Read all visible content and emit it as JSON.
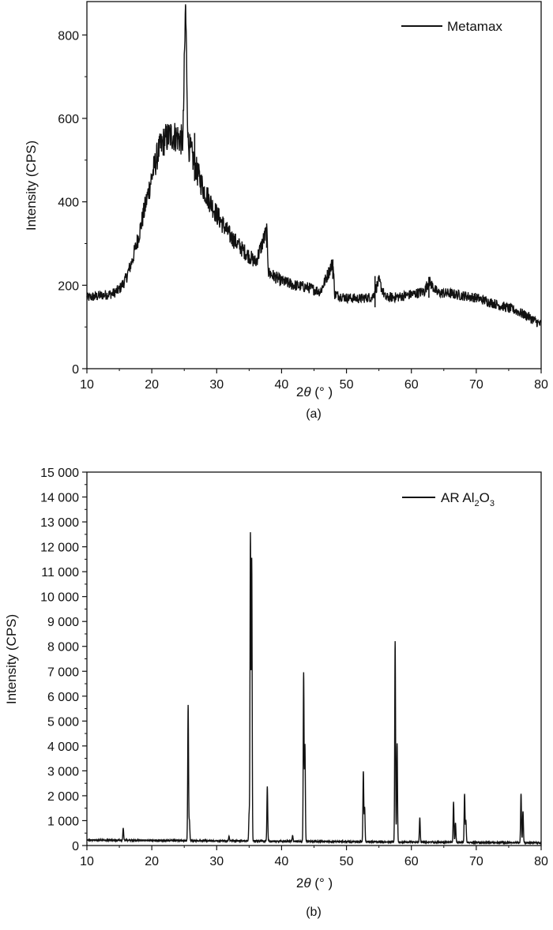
{
  "chart_data": [
    {
      "type": "line",
      "panel_label": "(a)",
      "xlabel_pre": "2",
      "xlabel_theta": "θ",
      "xlabel_post": " (° )",
      "ylabel": "Intensity (CPS)",
      "xlim": [
        10,
        80
      ],
      "ylim": [
        0,
        880
      ],
      "xticks": [
        10,
        20,
        30,
        40,
        50,
        60,
        70,
        80
      ],
      "yticks": [
        0,
        200,
        400,
        600,
        800
      ],
      "ytick_labels": [
        "0",
        "200",
        "400",
        "600",
        "800"
      ],
      "legend": "top-right",
      "grid": false,
      "series": [
        {
          "name": "Metamax",
          "color": "#111111",
          "x": [
            10,
            12,
            14,
            15,
            16,
            17,
            18,
            19,
            20,
            21,
            22,
            23,
            24,
            24.8,
            25.2,
            25.6,
            26,
            27,
            28,
            29,
            30,
            32,
            34,
            36,
            37.7,
            38,
            40,
            42,
            44,
            46,
            47.9,
            48.2,
            50,
            52,
            54,
            55,
            56,
            58,
            60,
            62,
            62.7,
            64,
            66,
            68,
            70,
            72,
            74,
            76,
            78,
            80
          ],
          "y": [
            170,
            175,
            180,
            190,
            215,
            260,
            320,
            390,
            460,
            520,
            550,
            560,
            555,
            545,
            870,
            540,
            520,
            470,
            430,
            400,
            370,
            320,
            285,
            255,
            330,
            230,
            210,
            200,
            195,
            185,
            255,
            178,
            170,
            168,
            172,
            210,
            170,
            172,
            178,
            185,
            210,
            182,
            180,
            175,
            170,
            160,
            150,
            140,
            125,
            105
          ]
        }
      ]
    },
    {
      "type": "line",
      "panel_label": "(b)",
      "xlabel_pre": "2",
      "xlabel_theta": "θ",
      "xlabel_post": " (° )",
      "ylabel": "Intensity (CPS)",
      "xlim": [
        10,
        80
      ],
      "ylim": [
        0,
        15000
      ],
      "xticks": [
        10,
        20,
        30,
        40,
        50,
        60,
        70,
        80
      ],
      "yticks": [
        0,
        1000,
        2000,
        3000,
        4000,
        5000,
        6000,
        7000,
        8000,
        9000,
        10000,
        11000,
        12000,
        13000,
        14000,
        15000
      ],
      "ytick_labels": [
        "0",
        "1 000",
        "2 000",
        "3 000",
        "4 000",
        "5 000",
        "6 000",
        "7 000",
        "8 000",
        "9 000",
        "10 000",
        "11 000",
        "12 000",
        "13 000",
        "14 000",
        "15 000"
      ],
      "legend": "top-right",
      "grid": false,
      "series": [
        {
          "name_main": "AR Al",
          "name_sub1": "2",
          "name_mid": "O",
          "name_sub2": "3",
          "color": "#111111",
          "baseline": 220,
          "peaks": [
            {
              "x": 15.6,
              "y": 700
            },
            {
              "x": 25.6,
              "y": 5650
            },
            {
              "x": 25.8,
              "y": 1000
            },
            {
              "x": 31.9,
              "y": 420
            },
            {
              "x": 35.2,
              "y": 12550
            },
            {
              "x": 35.4,
              "y": 11500
            },
            {
              "x": 35.0,
              "y": 1300
            },
            {
              "x": 37.8,
              "y": 2400
            },
            {
              "x": 41.7,
              "y": 450
            },
            {
              "x": 43.4,
              "y": 7000
            },
            {
              "x": 43.6,
              "y": 4100
            },
            {
              "x": 52.6,
              "y": 3050
            },
            {
              "x": 52.8,
              "y": 1600
            },
            {
              "x": 57.5,
              "y": 8300
            },
            {
              "x": 57.8,
              "y": 4200
            },
            {
              "x": 61.3,
              "y": 1200
            },
            {
              "x": 66.5,
              "y": 1850
            },
            {
              "x": 66.8,
              "y": 1000
            },
            {
              "x": 68.2,
              "y": 2150
            },
            {
              "x": 68.4,
              "y": 1100
            },
            {
              "x": 76.9,
              "y": 2200
            },
            {
              "x": 77.2,
              "y": 1500
            }
          ]
        }
      ]
    }
  ]
}
